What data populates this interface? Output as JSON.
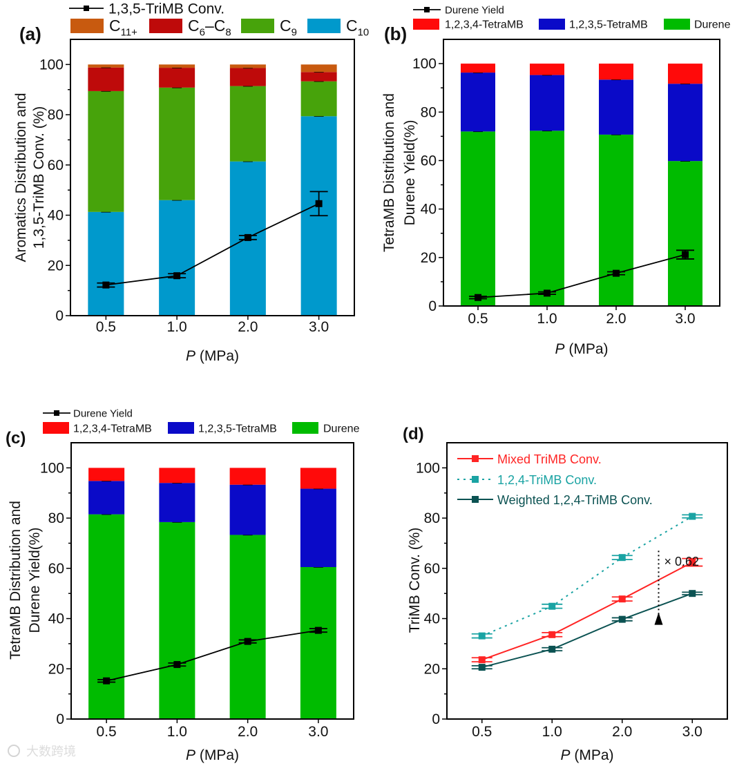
{
  "chart_data": [
    {
      "panel": "(a)",
      "type": "bar",
      "stacked": true,
      "categories": [
        "0.5",
        "1.0",
        "2.0",
        "3.0"
      ],
      "xlabel_italic": "P",
      "xlabel_unit": "(MPa)",
      "ylabel_lines": [
        "Aromatics Distribution and",
        "1,3,5-TriMB Conv. (%)"
      ],
      "ylim": [
        0,
        110
      ],
      "yticks": [
        "0",
        "20",
        "40",
        "60",
        "80",
        "100"
      ],
      "series": [
        {
          "name": "C10",
          "label_parts": [
            {
              "t": "C"
            },
            {
              "t": "10",
              "sub": true
            }
          ],
          "color": "#0099CC",
          "values": [
            41.3,
            46.0,
            61.4,
            79.4
          ]
        },
        {
          "name": "C9",
          "label_parts": [
            {
              "t": "C"
            },
            {
              "t": "9",
              "sub": true
            }
          ],
          "color": "#47A30B",
          "values": [
            48.1,
            44.8,
            30.0,
            13.9
          ]
        },
        {
          "name": "C6–C8",
          "label_parts": [
            {
              "t": "C"
            },
            {
              "t": "6",
              "sub": true
            },
            {
              "t": "–C"
            },
            {
              "t": "8",
              "sub": true
            }
          ],
          "color": "#BE0A0A",
          "values": [
            9.4,
            7.9,
            7.2,
            3.7
          ]
        },
        {
          "name": "C11+",
          "label_parts": [
            {
              "t": "C"
            },
            {
              "t": "11+",
              "sub": true
            }
          ],
          "color": "#C85A0F",
          "values": [
            1.2,
            1.3,
            1.4,
            3.0
          ]
        }
      ],
      "line": {
        "name": "1,3,5-TriMB Conv.",
        "color": "#000000",
        "values": [
          12.2,
          15.9,
          31.1,
          44.6
        ],
        "errors": [
          0.8,
          0.8,
          0.8,
          4.8
        ]
      }
    },
    {
      "panel": "(b)",
      "type": "bar",
      "stacked": true,
      "categories": [
        "0.5",
        "1.0",
        "2.0",
        "3.0"
      ],
      "xlabel_italic": "P",
      "xlabel_unit": "(MPa)",
      "ylabel_lines": [
        "TetraMB Distribution and",
        "Durene Yield(%)"
      ],
      "ylim": [
        0,
        110
      ],
      "yticks": [
        "0",
        "20",
        "40",
        "60",
        "80",
        "100"
      ],
      "series": [
        {
          "name": "Durene",
          "label_parts": [
            {
              "t": "Durene"
            }
          ],
          "color": "#00BB00",
          "values": [
            72.0,
            72.3,
            70.7,
            59.8
          ]
        },
        {
          "name": "1,2,3,5-TetraMB",
          "label_parts": [
            {
              "t": "1,2,3,5-TetraMB"
            }
          ],
          "color": "#0A0AC8",
          "values": [
            24.3,
            23.0,
            22.7,
            31.9
          ]
        },
        {
          "name": "1,2,3,4-TetraMB",
          "label_parts": [
            {
              "t": "1,2,3,4-TetraMB"
            }
          ],
          "color": "#FF0A0A",
          "values": [
            3.7,
            4.7,
            6.6,
            8.3
          ]
        }
      ],
      "line": {
        "name": "Durene Yield",
        "color": "#000000",
        "values": [
          3.5,
          5.3,
          13.5,
          21.2
        ],
        "errors": [
          0.5,
          0.5,
          0.6,
          1.8
        ]
      }
    },
    {
      "panel": "(c)",
      "type": "bar",
      "stacked": true,
      "categories": [
        "0.5",
        "1.0",
        "2.0",
        "3.0"
      ],
      "xlabel_italic": "P",
      "xlabel_unit": "(MPa)",
      "ylabel_lines": [
        "TetraMB Distribution and",
        "Durene Yield(%)"
      ],
      "ylim": [
        0,
        110
      ],
      "yticks": [
        "0",
        "20",
        "40",
        "60",
        "80",
        "100"
      ],
      "series": [
        {
          "name": "Durene",
          "label_parts": [
            {
              "t": "Durene"
            }
          ],
          "color": "#00BB00",
          "values": [
            81.5,
            78.4,
            73.3,
            60.5
          ]
        },
        {
          "name": "1,2,3,5-TetraMB",
          "label_parts": [
            {
              "t": "1,2,3,5-TetraMB"
            }
          ],
          "color": "#0A0AC8",
          "values": [
            13.3,
            15.6,
            20.0,
            31.2
          ]
        },
        {
          "name": "1,2,3,4-TetraMB",
          "label_parts": [
            {
              "t": "1,2,3,4-TetraMB"
            }
          ],
          "color": "#FF0A0A",
          "values": [
            5.2,
            6.0,
            6.7,
            8.3
          ]
        }
      ],
      "line": {
        "name": "Durene Yield",
        "color": "#000000",
        "values": [
          15.2,
          21.7,
          30.9,
          35.3
        ],
        "errors": [
          0.5,
          0.6,
          0.6,
          0.7
        ]
      }
    },
    {
      "panel": "(d)",
      "type": "line",
      "categories": [
        "0.5",
        "1.0",
        "2.0",
        "3.0"
      ],
      "xlabel_italic": "P",
      "xlabel_unit": "(MPa)",
      "ylabel_lines": [
        "TriMB Conv. (%)"
      ],
      "ylim": [
        0,
        110
      ],
      "yticks": [
        "0",
        "20",
        "40",
        "60",
        "80",
        "100"
      ],
      "series": [
        {
          "name": "Mixed TriMB Conv.",
          "color": "#FF2424",
          "dash": false,
          "values": [
            23.6,
            33.6,
            47.8,
            62.4
          ],
          "errors": [
            0.8,
            0.8,
            0.8,
            1.5
          ]
        },
        {
          "name": "1,2,4-TriMB Conv.",
          "color": "#1AA3A3",
          "dash": true,
          "values": [
            33.1,
            44.9,
            64.3,
            80.7
          ],
          "errors": [
            0.8,
            0.8,
            0.8,
            0.6
          ]
        },
        {
          "name": "Weighted 1,2,4-TriMB Conv.",
          "color": "#0B5252",
          "dash": false,
          "values": [
            20.6,
            27.8,
            39.7,
            50.0
          ],
          "errors": [
            0.6,
            0.6,
            0.6,
            0.5
          ]
        }
      ],
      "annotation": {
        "text": "× 0.62",
        "from_value": 67,
        "to_value": 43,
        "between": [
          "2.0",
          "3.0"
        ]
      }
    }
  ],
  "watermark": "大数跨境"
}
